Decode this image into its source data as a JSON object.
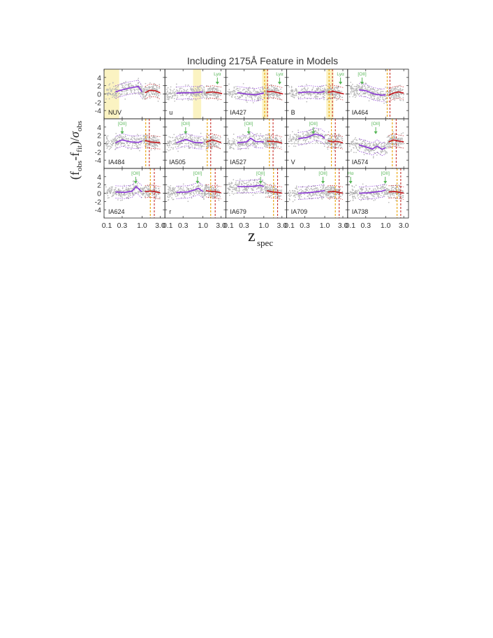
{
  "figure": {
    "title": "Including 2175Å Feature in Models",
    "xlabel_main": "z",
    "xlabel_sub": "spec",
    "ylabel_parts": [
      "(f",
      "obs",
      "-f",
      "fit",
      ")/",
      "σ",
      "obs"
    ]
  },
  "chart_data": {
    "type": "scatter",
    "xscale": "log",
    "xlim": [
      0.1,
      4.0
    ],
    "ylim": [
      -6,
      6
    ],
    "x_ticks": [
      0.1,
      0.3,
      1.0,
      3.0
    ],
    "x_tick_labels": [
      "0.1",
      "0.3",
      "1.0",
      "3.0"
    ],
    "y_ticks": [
      4,
      2,
      0,
      -2,
      -4
    ],
    "y_tick_labels": [
      "4",
      "2",
      "0",
      "-2",
      "-4"
    ],
    "colors": {
      "points": "#b8b8b8",
      "curve_low_z": "#8a35d6",
      "curve_high_z": "#c4161c",
      "highlight_band": "#fbf3c2",
      "vline_orange": "#e8a000",
      "vline_red": "#c8302a",
      "feature_marker": "#56b656",
      "zero_line": "#888888"
    },
    "panels": [
      {
        "band": "NUV",
        "shade": [
          0.1,
          0.25
        ],
        "vlines": [],
        "feature_label": "",
        "feature_z": null,
        "purple": [
          [
            0.2,
            0.5
          ],
          [
            0.3,
            1.0
          ],
          [
            0.5,
            1.5
          ],
          [
            0.8,
            1.8
          ],
          [
            1.0,
            0.5
          ]
        ],
        "red": [
          [
            1.2,
            0.3
          ],
          [
            1.6,
            0.9
          ],
          [
            2.2,
            0.8
          ],
          [
            3.0,
            0.3
          ]
        ],
        "dip": 0.5
      },
      {
        "band": "u",
        "shade": [
          0.55,
          0.9
        ],
        "vlines": [],
        "feature_label": "Lyα",
        "feature_z": 2.4,
        "purple": [
          [
            0.2,
            0.2
          ],
          [
            0.35,
            0.3
          ],
          [
            0.6,
            0.3
          ],
          [
            1.0,
            0.5
          ]
        ],
        "red": [
          [
            1.2,
            0.3
          ],
          [
            1.8,
            0.5
          ],
          [
            2.5,
            0.3
          ],
          [
            3.2,
            0.1
          ]
        ],
        "dip": 0.2
      },
      {
        "band": "IA427",
        "shade": [
          0.9,
          1.3
        ],
        "vlines": [
          1.05,
          1.25
        ],
        "feature_label": "Lyα",
        "feature_z": 2.6,
        "purple": [
          [
            0.2,
            0.3
          ],
          [
            0.35,
            0.0
          ],
          [
            0.6,
            -0.2
          ],
          [
            1.0,
            0.2
          ]
        ],
        "red": [
          [
            1.2,
            0.5
          ],
          [
            1.7,
            0.6
          ],
          [
            2.4,
            0.3
          ],
          [
            3.2,
            0.0
          ]
        ],
        "dip": 0.4
      },
      {
        "band": "B",
        "shade": [
          1.1,
          1.7
        ],
        "vlines": [
          1.3,
          1.6
        ],
        "feature_label": "Lyα",
        "feature_z": 2.6,
        "purple": [
          [
            0.2,
            0.3
          ],
          [
            0.4,
            0.5
          ],
          [
            0.7,
            0.3
          ],
          [
            1.0,
            0.6
          ]
        ],
        "red": [
          [
            1.2,
            0.4
          ],
          [
            1.7,
            0.6
          ],
          [
            2.4,
            0.3
          ],
          [
            3.2,
            0.0
          ]
        ],
        "dip": 0.3
      },
      {
        "band": "IA464",
        "shade": null,
        "vlines": [
          1.1,
          1.3
        ],
        "feature_label": "[OII]",
        "feature_z": 0.24,
        "purple": [
          [
            0.2,
            1.0
          ],
          [
            0.3,
            0.8
          ],
          [
            0.5,
            0.0
          ],
          [
            0.8,
            -0.3
          ],
          [
            1.0,
            -0.2
          ]
        ],
        "red": [
          [
            1.2,
            -0.3
          ],
          [
            1.6,
            0.2
          ],
          [
            2.2,
            0.5
          ],
          [
            3.0,
            0.2
          ]
        ],
        "dip": -0.5
      },
      {
        "band": "IA484",
        "shade": null,
        "vlines": [
          1.25,
          1.55
        ],
        "feature_label": "[OII]",
        "feature_z": 0.3,
        "purple": [
          [
            0.2,
            0.2
          ],
          [
            0.3,
            0.9
          ],
          [
            0.5,
            0.4
          ],
          [
            0.8,
            0.3
          ],
          [
            1.0,
            0.6
          ]
        ],
        "red": [
          [
            1.2,
            0.8
          ],
          [
            1.6,
            0.4
          ],
          [
            2.2,
            0.3
          ],
          [
            3.0,
            0.2
          ]
        ],
        "dip": 0.3
      },
      {
        "band": "IA505",
        "shade": null,
        "vlines": [
          1.3,
          1.6
        ],
        "feature_label": "[OII]",
        "feature_z": 0.35,
        "purple": [
          [
            0.2,
            0.2
          ],
          [
            0.35,
            1.0
          ],
          [
            0.6,
            0.3
          ],
          [
            1.0,
            0.2
          ]
        ],
        "red": [
          [
            1.2,
            0.3
          ],
          [
            1.7,
            0.9
          ],
          [
            2.3,
            0.6
          ],
          [
            3.0,
            0.2
          ]
        ],
        "dip": 0.2
      },
      {
        "band": "IA527",
        "shade": null,
        "vlines": [
          1.4,
          1.75
        ],
        "feature_label": "[OII]",
        "feature_z": 0.4,
        "purple": [
          [
            0.2,
            0.2
          ],
          [
            0.35,
            0.4
          ],
          [
            0.45,
            1.3
          ],
          [
            0.6,
            0.5
          ],
          [
            1.0,
            0.4
          ]
        ],
        "red": [
          [
            1.2,
            0.6
          ],
          [
            1.7,
            0.5
          ],
          [
            2.4,
            0.4
          ],
          [
            3.0,
            0.1
          ]
        ],
        "dip": 0.3
      },
      {
        "band": "V",
        "shade": null,
        "vlines": [
          1.5,
          1.9
        ],
        "feature_label": "[OII]",
        "feature_z": 0.5,
        "purple": [
          [
            0.2,
            1.2
          ],
          [
            0.35,
            1.5
          ],
          [
            0.55,
            2.3
          ],
          [
            0.8,
            2.0
          ],
          [
            1.0,
            1.3
          ]
        ],
        "red": [
          [
            1.2,
            0.7
          ],
          [
            1.6,
            0.4
          ],
          [
            2.2,
            0.5
          ],
          [
            3.0,
            0.2
          ]
        ],
        "dip": 0.3
      },
      {
        "band": "IA574",
        "shade": null,
        "vlines": [
          1.5,
          1.9
        ],
        "feature_label": "[OII]",
        "feature_z": 0.55,
        "purple": [
          [
            0.2,
            -0.3
          ],
          [
            0.3,
            -0.8
          ],
          [
            0.45,
            -1.3
          ],
          [
            0.6,
            -0.6
          ],
          [
            0.8,
            -1.4
          ],
          [
            1.0,
            -1.0
          ]
        ],
        "red": [
          [
            1.2,
            0.4
          ],
          [
            1.6,
            0.9
          ],
          [
            2.2,
            0.6
          ],
          [
            3.0,
            0.4
          ]
        ],
        "dip": -0.8
      },
      {
        "band": "IA624",
        "shade": null,
        "vlines": [
          1.65,
          2.1
        ],
        "feature_label": "[OII]",
        "feature_z": 0.68,
        "purple": [
          [
            0.2,
            0.3
          ],
          [
            0.35,
            0.2
          ],
          [
            0.55,
            0.5
          ],
          [
            0.7,
            1.6
          ],
          [
            0.9,
            0.7
          ],
          [
            1.0,
            0.3
          ]
        ],
        "red": [
          [
            1.2,
            0.4
          ],
          [
            1.7,
            0.5
          ],
          [
            2.4,
            0.3
          ],
          [
            3.0,
            0.1
          ]
        ],
        "dip": 0.4
      },
      {
        "band": "r",
        "shade": null,
        "vlines": [
          1.6,
          2.1
        ],
        "feature_label": "[OII]",
        "feature_z": 0.72,
        "purple": [
          [
            0.2,
            0.2
          ],
          [
            0.4,
            0.3
          ],
          [
            0.6,
            0.8
          ],
          [
            0.75,
            1.2
          ],
          [
            1.0,
            0.4
          ]
        ],
        "red": [
          [
            1.2,
            0.6
          ],
          [
            1.7,
            0.4
          ],
          [
            2.4,
            0.3
          ],
          [
            3.0,
            0.1
          ]
        ],
        "dip": 0.4
      },
      {
        "band": "IA679",
        "shade": null,
        "vlines": [
          1.8,
          2.3
        ],
        "feature_label": "[OII]",
        "feature_z": 0.82,
        "purple": [
          [
            0.2,
            1.6
          ],
          [
            0.35,
            1.6
          ],
          [
            0.55,
            1.7
          ],
          [
            0.8,
            1.9
          ],
          [
            1.0,
            1.6
          ]
        ],
        "red": [
          [
            1.2,
            0.6
          ],
          [
            1.7,
            0.3
          ],
          [
            2.4,
            0.2
          ],
          [
            3.0,
            0.0
          ]
        ],
        "dip": 0.6
      },
      {
        "band": "IA709",
        "shade": null,
        "vlines": [
          1.9,
          2.4
        ],
        "feature_label": "[OII]",
        "feature_z": 0.9,
        "purple": [
          [
            0.2,
            0.0
          ],
          [
            0.35,
            0.1
          ],
          [
            0.55,
            0.3
          ],
          [
            0.8,
            0.5
          ],
          [
            1.0,
            0.6
          ]
        ],
        "red": [
          [
            1.2,
            0.3
          ],
          [
            1.7,
            0.4
          ],
          [
            2.4,
            0.2
          ],
          [
            3.0,
            0.0
          ]
        ],
        "dip": 0.4
      },
      {
        "band": "IA738",
        "shade": null,
        "vlines": [
          2.0,
          2.5
        ],
        "feature_label": "[OII]",
        "feature_z": 0.98,
        "feature2_label": "Hα",
        "feature2_z": 0.12,
        "purple": [
          [
            0.2,
            0.0
          ],
          [
            0.35,
            0.1
          ],
          [
            0.55,
            0.3
          ],
          [
            0.8,
            0.5
          ],
          [
            1.0,
            0.8
          ]
        ],
        "red": [
          [
            1.2,
            0.3
          ],
          [
            1.7,
            0.4
          ],
          [
            2.4,
            0.2
          ],
          [
            3.0,
            0.0
          ]
        ],
        "dip": 0.5
      }
    ]
  }
}
